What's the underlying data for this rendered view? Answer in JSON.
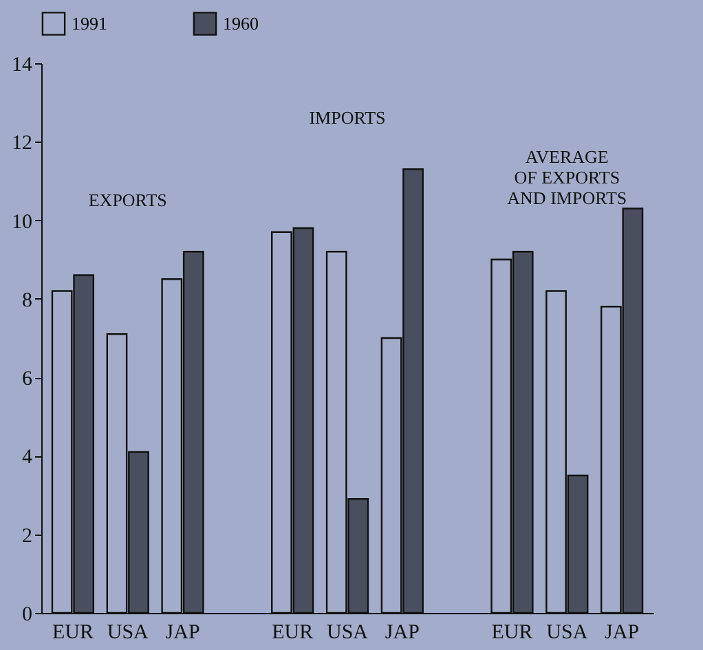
{
  "chart_data": {
    "type": "bar",
    "categories": [
      "EUR",
      "USA",
      "JAP",
      null,
      "EUR",
      "USA",
      "JAP",
      null,
      "EUR",
      "USA",
      "JAP"
    ],
    "series": [
      {
        "name": "1991",
        "color": "#a3adcb",
        "values": [
          8.2,
          7.1,
          8.5,
          null,
          9.7,
          9.2,
          7.0,
          null,
          9.0,
          8.2,
          7.8
        ]
      },
      {
        "name": "1960",
        "color": "#4a4f60",
        "values": [
          8.6,
          4.1,
          9.2,
          null,
          9.8,
          2.9,
          11.3,
          null,
          9.2,
          3.5,
          10.3
        ]
      }
    ],
    "ylim": [
      0,
      14
    ],
    "yticks": [
      0,
      2,
      4,
      6,
      8,
      10,
      12,
      14
    ],
    "annotations": [
      "EXPORTS",
      "IMPORTS",
      "AVERAGE\nOF EXPORTS\nAND IMPORTS"
    ],
    "legend": "top",
    "grid": false
  }
}
